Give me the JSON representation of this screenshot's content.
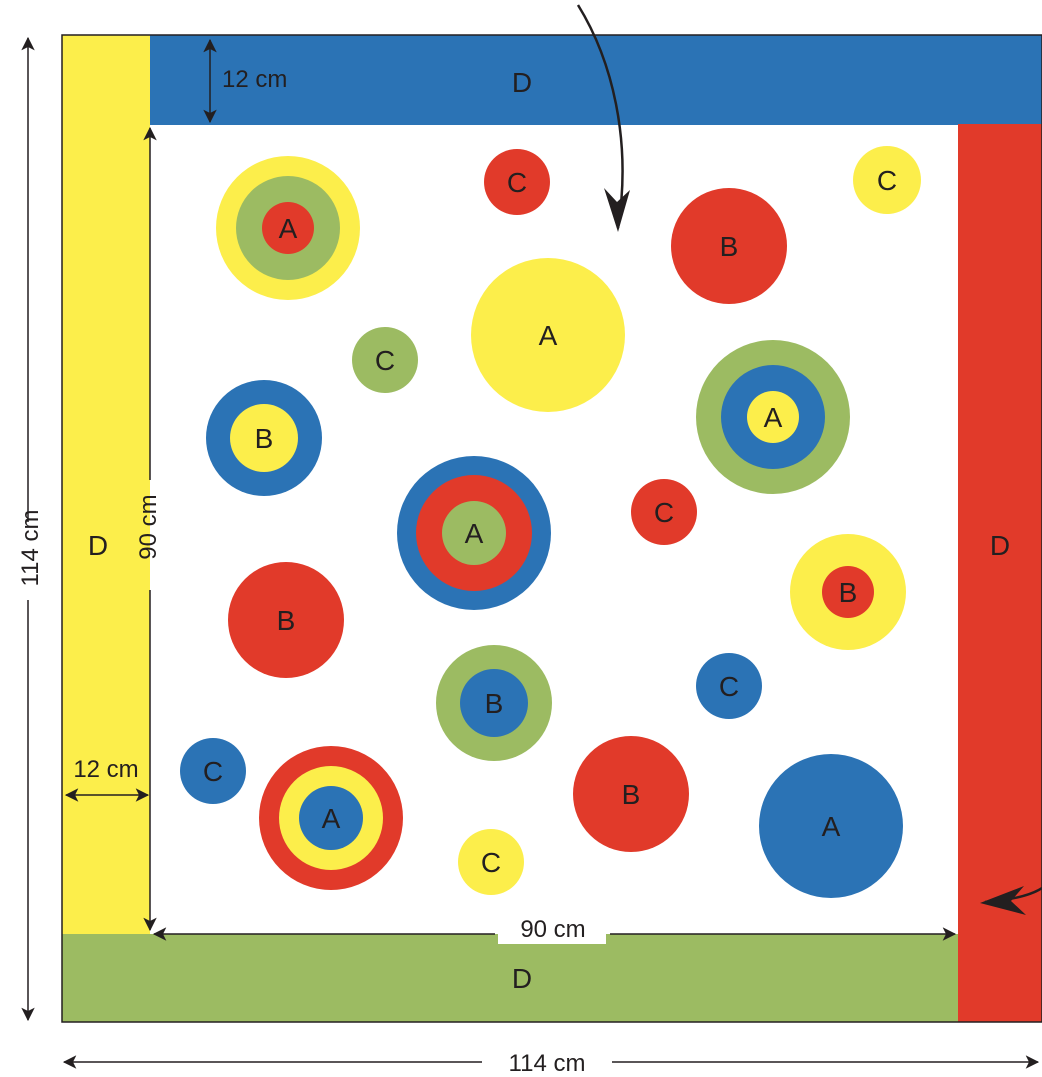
{
  "colors": {
    "yellow": "#fcee4b",
    "blue": "#2b73b5",
    "red": "#e13a2a",
    "green": "#9cbb62",
    "ink": "#231f20"
  },
  "border_strips": {
    "top": {
      "label": "D",
      "color": "blue"
    },
    "left": {
      "label": "D",
      "color": "yellow"
    },
    "right": {
      "label": "D",
      "color": "red"
    },
    "bottom": {
      "label": "D",
      "color": "green"
    }
  },
  "dimensions": {
    "total_width": "114 cm",
    "total_height": "114 cm",
    "inner_width": "90 cm",
    "inner_height": "90 cm",
    "strip_width_top": "12 cm",
    "strip_width_left": "12 cm"
  },
  "targets": [
    {
      "label": "A",
      "rings": [
        "yellow",
        "green",
        "red"
      ]
    },
    {
      "label": "C",
      "rings": [
        "red"
      ]
    },
    {
      "label": "B",
      "rings": [
        "red"
      ]
    },
    {
      "label": "C",
      "rings": [
        "yellow"
      ]
    },
    {
      "label": "A",
      "rings": [
        "yellow"
      ]
    },
    {
      "label": "C",
      "rings": [
        "green"
      ]
    },
    {
      "label": "B",
      "rings": [
        "blue",
        "yellow"
      ]
    },
    {
      "label": "A",
      "rings": [
        "green",
        "blue",
        "yellow"
      ]
    },
    {
      "label": "A",
      "rings": [
        "blue",
        "red",
        "green"
      ]
    },
    {
      "label": "C",
      "rings": [
        "red"
      ]
    },
    {
      "label": "B",
      "rings": [
        "yellow",
        "red"
      ]
    },
    {
      "label": "B",
      "rings": [
        "red"
      ]
    },
    {
      "label": "B",
      "rings": [
        "green",
        "blue"
      ]
    },
    {
      "label": "C",
      "rings": [
        "blue"
      ]
    },
    {
      "label": "C",
      "rings": [
        "blue"
      ]
    },
    {
      "label": "A",
      "rings": [
        "red",
        "yellow",
        "blue"
      ]
    },
    {
      "label": "B",
      "rings": [
        "red"
      ]
    },
    {
      "label": "A",
      "rings": [
        "blue"
      ]
    },
    {
      "label": "C",
      "rings": [
        "yellow"
      ]
    }
  ]
}
